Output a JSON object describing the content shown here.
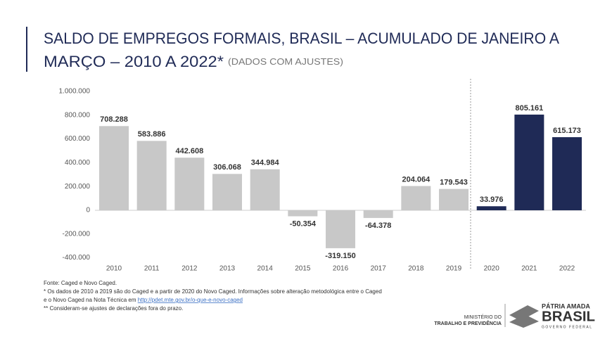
{
  "chart_data": {
    "type": "bar",
    "title": [
      "SALDO DE EMPREGOS FORMAIS, BRASIL – ACUMULADO DE JANEIRO A",
      "MARÇO – 2010 A 2022*"
    ],
    "subtitle": "(DADOS COM AJUSTES)",
    "categories": [
      "2010",
      "2011",
      "2012",
      "2013",
      "2014",
      "2015",
      "2016",
      "2017",
      "2018",
      "2019",
      "2020",
      "2021",
      "2022"
    ],
    "values": [
      708288,
      583886,
      442608,
      306068,
      344984,
      -50354,
      -319150,
      -64378,
      204064,
      179543,
      33976,
      805161,
      615173
    ],
    "value_labels": [
      "708.288",
      "583.886",
      "442.608",
      "306.068",
      "344.984",
      "-50.354",
      "-319.150",
      "-64.378",
      "204.064",
      "179.543",
      "33.976",
      "805.161",
      "615.173"
    ],
    "colors": [
      "#c8c8c8",
      "#c8c8c8",
      "#c8c8c8",
      "#c8c8c8",
      "#c8c8c8",
      "#c8c8c8",
      "#c8c8c8",
      "#c8c8c8",
      "#c8c8c8",
      "#c8c8c8",
      "#1f2a56",
      "#1f2a56",
      "#1f2a56"
    ],
    "ylim": [
      -400000,
      1000000
    ],
    "yticks": [
      {
        "value": -400000,
        "label": "-400.000"
      },
      {
        "value": -200000,
        "label": "-200.000"
      },
      0,
      {
        "value": 200000,
        "label": "200.000"
      },
      {
        "value": 400000,
        "label": "400.000"
      },
      {
        "value": 600000,
        "label": "600.000"
      },
      {
        "value": 800000,
        "label": "800.000"
      },
      {
        "value": 1000000,
        "label": "1.000.000"
      }
    ]
  },
  "footnotes": {
    "lines": [
      "Fonte: Caged e Novo Caged.",
      "* Os dados de 2010 a 2019 são do Caged e a partir de 2020 do Novo Caged. Informações sobre alteração metodológica entre o Caged",
      "e o Novo Caged na Nota Técnica em ",
      "** Consideram-se ajustes de declarações fora do prazo."
    ],
    "link": "http://pdet.mte.gov.br/o-que-e-novo-caged"
  },
  "logos": {
    "ministry": [
      "MINISTÉRIO DO",
      "TRABALHO E PREVIDÊNCIA"
    ],
    "brand": [
      "PÁTRIA AMADA",
      "BRASIL",
      "GOVERNO FEDERAL"
    ]
  }
}
